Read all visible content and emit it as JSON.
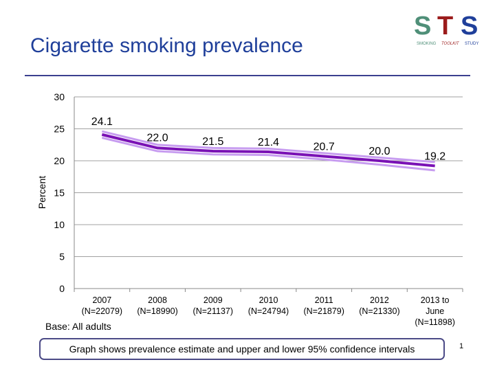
{
  "title": "Cigarette smoking prevalence",
  "logo": {
    "letters": "STS",
    "words": [
      "SMOKING",
      "TOOLKIT",
      "STUDY"
    ],
    "colors": [
      "#4f8f78",
      "#9b1c1c",
      "#1f3f9a"
    ]
  },
  "base_text": "Base: All adults",
  "note": "Graph shows prevalence estimate and upper and lower 95% confidence intervals",
  "page_number": "1",
  "chart_data": {
    "type": "line",
    "ylabel": "Percent",
    "xlabel": "",
    "ylim": [
      0,
      30
    ],
    "yticks": [
      "0",
      "5",
      "10",
      "15",
      "20",
      "25",
      "30"
    ],
    "grid": true,
    "categories": [
      [
        "2007",
        "(N=22079)"
      ],
      [
        "2008",
        "(N=18990)"
      ],
      [
        "2009",
        "(N=21137)"
      ],
      [
        "2010",
        "(N=24794)"
      ],
      [
        "2011",
        "(N=21879)"
      ],
      [
        "2012",
        "(N=21330)"
      ],
      [
        "2013 to",
        "June",
        "(N=11898)"
      ]
    ],
    "estimate": [
      24.1,
      22.0,
      21.5,
      21.4,
      20.7,
      20.0,
      19.2
    ],
    "data_labels": [
      "24.1",
      "22.0",
      "21.5",
      "21.4",
      "20.7",
      "20.0",
      "19.2"
    ],
    "upper_ci": [
      24.6,
      22.5,
      22.0,
      21.9,
      21.2,
      20.5,
      19.8
    ],
    "lower_ci": [
      23.6,
      21.5,
      21.0,
      20.9,
      20.2,
      19.4,
      18.5
    ],
    "colors": {
      "estimate": "#7a12b5",
      "ci": "#c79cf0",
      "grid": "#a0a0a0"
    }
  }
}
